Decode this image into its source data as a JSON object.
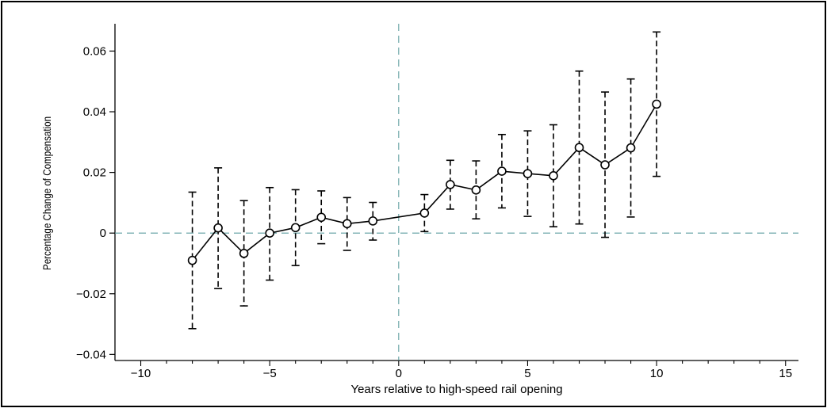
{
  "chart_data": {
    "type": "line",
    "title": "",
    "xlabel": "Years relative to high-speed rail opening",
    "ylabel": "Percentage Change of Compensation",
    "xlim": [
      -11,
      15.5
    ],
    "ylim": [
      -0.042,
      0.069
    ],
    "xticks": [
      -10,
      -5,
      0,
      5,
      10,
      15
    ],
    "xtick_labels": [
      "−10",
      "−5",
      "0",
      "5",
      "10",
      "15"
    ],
    "yticks": [
      -0.04,
      -0.02,
      0,
      0.02,
      0.04,
      0.06
    ],
    "ytick_labels": [
      "−0.04",
      "−0.02",
      "0",
      "0.02",
      "0.04",
      "0.06"
    ],
    "reference_lines": {
      "horizontal": 0,
      "vertical": 0,
      "style": "dashed",
      "color": "#5f9ea0"
    },
    "grid": false,
    "legend": "none",
    "series": [
      {
        "marker": "hollow-circle",
        "line_color": "#000000",
        "errorbar_style": "dashed",
        "points": [
          {
            "x": -8,
            "y": -0.009,
            "lo": -0.0315,
            "hi": 0.0135
          },
          {
            "x": -7,
            "y": 0.0017,
            "lo": -0.0183,
            "hi": 0.0215
          },
          {
            "x": -6,
            "y": -0.0067,
            "lo": -0.024,
            "hi": 0.0107
          },
          {
            "x": -5,
            "y": 0.0,
            "lo": -0.0155,
            "hi": 0.015
          },
          {
            "x": -4,
            "y": 0.0018,
            "lo": -0.0107,
            "hi": 0.0143
          },
          {
            "x": -3,
            "y": 0.0052,
            "lo": -0.0035,
            "hi": 0.0139
          },
          {
            "x": -2,
            "y": 0.0031,
            "lo": -0.0057,
            "hi": 0.0117
          },
          {
            "x": -1,
            "y": 0.004,
            "lo": -0.0023,
            "hi": 0.0101
          },
          {
            "x": 1,
            "y": 0.0066,
            "lo": 0.0005,
            "hi": 0.0127
          },
          {
            "x": 2,
            "y": 0.016,
            "lo": 0.0079,
            "hi": 0.024
          },
          {
            "x": 3,
            "y": 0.0142,
            "lo": 0.0047,
            "hi": 0.0238
          },
          {
            "x": 4,
            "y": 0.0204,
            "lo": 0.0083,
            "hi": 0.0325
          },
          {
            "x": 5,
            "y": 0.0196,
            "lo": 0.0055,
            "hi": 0.0337
          },
          {
            "x": 6,
            "y": 0.0189,
            "lo": 0.0021,
            "hi": 0.0357
          },
          {
            "x": 7,
            "y": 0.0282,
            "lo": 0.003,
            "hi": 0.0534
          },
          {
            "x": 8,
            "y": 0.0225,
            "lo": -0.0014,
            "hi": 0.0465
          },
          {
            "x": 9,
            "y": 0.0281,
            "lo": 0.0053,
            "hi": 0.0508
          },
          {
            "x": 10,
            "y": 0.0425,
            "lo": 0.0187,
            "hi": 0.0663
          }
        ]
      }
    ]
  }
}
